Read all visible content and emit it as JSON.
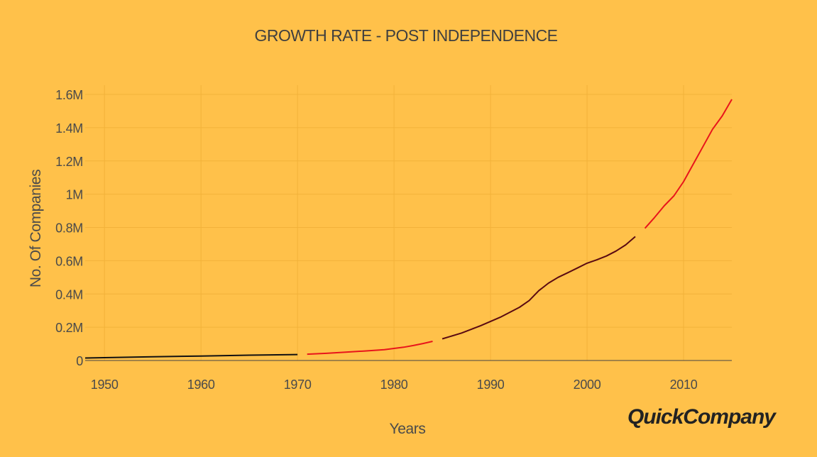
{
  "brand": "QuickCompany",
  "chart_data": {
    "type": "line",
    "title": "GROWTH RATE - POST INDEPENDENCE",
    "xlabel": "Years",
    "ylabel": "No. Of Companies",
    "xlim": [
      1948,
      2015
    ],
    "ylim": [
      0,
      1600000
    ],
    "x_ticks": [
      1950,
      1960,
      1970,
      1980,
      1990,
      2000,
      2010
    ],
    "x_tick_labels": [
      "1950",
      "1960",
      "1970",
      "1980",
      "1990",
      "2000",
      "2010"
    ],
    "y_ticks": [
      0,
      200000,
      400000,
      600000,
      800000,
      1000000,
      1200000,
      1400000,
      1600000
    ],
    "y_tick_labels": [
      "0",
      "0.2M",
      "0.4M",
      "0.6M",
      "0.8M",
      "1M",
      "1.2M",
      "1.4M",
      "1.6M"
    ],
    "grid": true,
    "legend": false,
    "series": [
      {
        "color": "#111111",
        "x": [
          1948,
          1950,
          1955,
          1960,
          1965,
          1970
        ],
        "values": [
          15000,
          17000,
          22000,
          27000,
          32000,
          36000
        ]
      },
      {
        "color": "#e8151b",
        "x": [
          1971,
          1973,
          1975,
          1977,
          1979,
          1981,
          1982,
          1983,
          1984
        ],
        "values": [
          38000,
          43000,
          50000,
          57000,
          65000,
          80000,
          90000,
          102000,
          115000
        ]
      },
      {
        "color": "#5a0a12",
        "x": [
          1985,
          1987,
          1989,
          1991,
          1993,
          1994,
          1995,
          1996,
          1997,
          1998,
          1999,
          2000,
          2001,
          2002,
          2003,
          2004,
          2005
        ],
        "values": [
          130000,
          165000,
          210000,
          260000,
          320000,
          360000,
          420000,
          465000,
          500000,
          528000,
          556000,
          585000,
          605000,
          628000,
          658000,
          695000,
          745000
        ]
      },
      {
        "color": "#e8151b",
        "x": [
          2006,
          2007,
          2008,
          2009,
          2010,
          2011,
          2012,
          2013,
          2014,
          2015
        ],
        "values": [
          795000,
          860000,
          930000,
          990000,
          1075000,
          1180000,
          1285000,
          1390000,
          1470000,
          1570000
        ]
      }
    ]
  }
}
